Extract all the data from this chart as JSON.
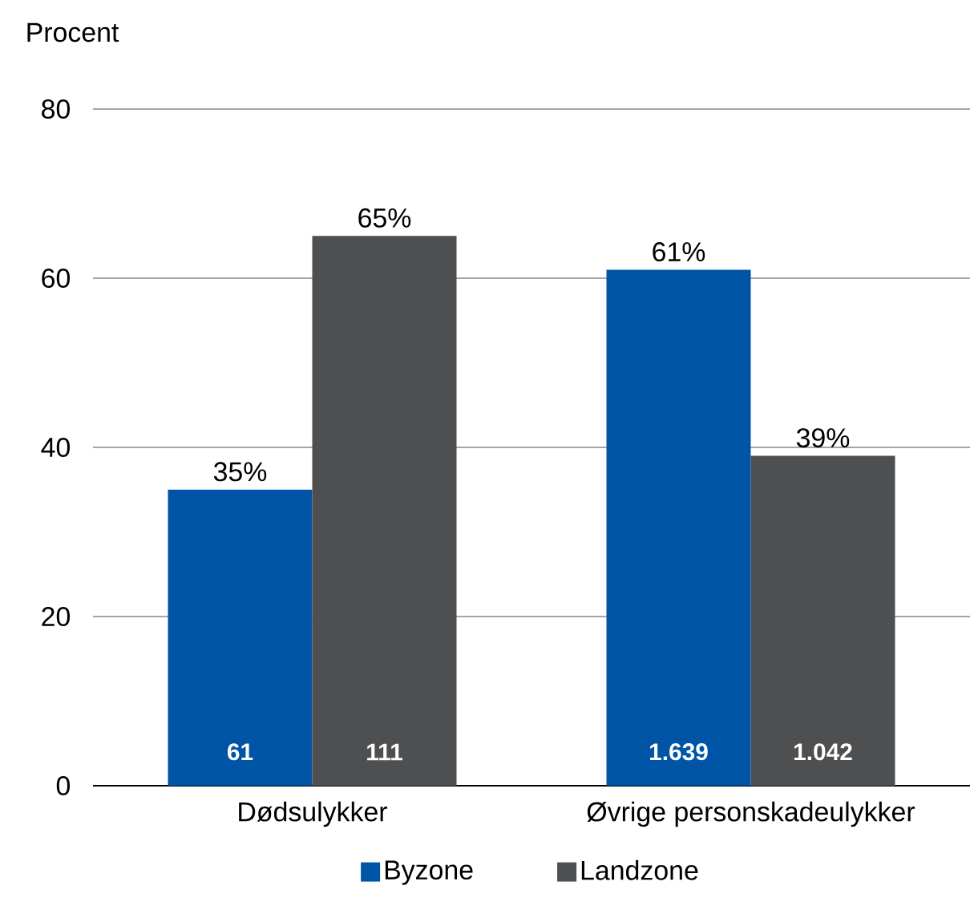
{
  "chart_data": {
    "type": "bar",
    "ylabel": "Procent",
    "categories": [
      "Dødsulykker",
      "Øvrige personskadeulykker"
    ],
    "series": [
      {
        "name": "Byzone",
        "color": "#0054a6",
        "values": [
          35,
          61
        ],
        "value_labels": [
          "35%",
          "61%"
        ]
      },
      {
        "name": "Landzone",
        "color": "#4d4f50",
        "values": [
          65,
          39
        ],
        "value_labels": [
          "65%",
          "39%"
        ]
      }
    ],
    "annotations": [
      "61",
      "111",
      "1.639",
      "1.042"
    ],
    "ylim": [
      0,
      80
    ],
    "yticks": [
      0,
      20,
      40,
      60,
      80
    ],
    "grid": "y",
    "legend": "bottom"
  }
}
